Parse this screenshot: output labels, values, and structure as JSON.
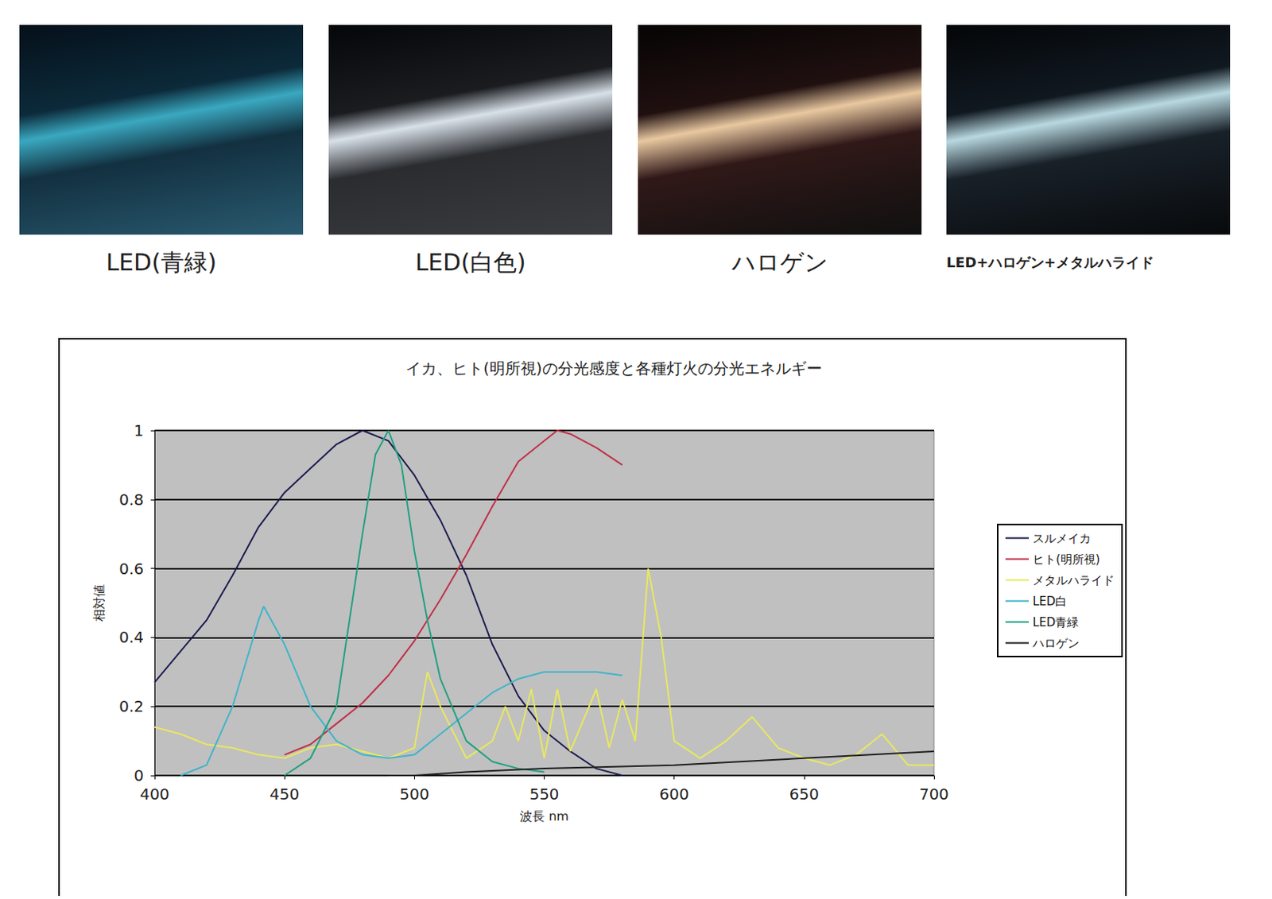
{
  "photos": [
    {
      "caption": "LED(青緑)"
    },
    {
      "caption": "LED(白色)"
    },
    {
      "caption": "ハロゲン"
    },
    {
      "caption": "LED+ハロゲン+メタルハライド"
    }
  ],
  "chart_data": {
    "type": "line",
    "title": "イカ、ヒト(明所視)の分光感度と各種灯火の分光エネルギー",
    "x_label": "波長 nm",
    "y_label": "相対値",
    "xlim": [
      400,
      700
    ],
    "xticks": [
      400,
      450,
      500,
      550,
      600,
      650,
      700
    ],
    "ylim": [
      0,
      1
    ],
    "yticks": [
      0,
      0.2,
      0.4,
      0.6,
      0.8,
      1
    ],
    "grid": true,
    "legend": "right",
    "series": [
      {
        "name": "スルメイカ",
        "color": "#1c1c50",
        "x": [
          400,
          410,
          420,
          430,
          440,
          450,
          460,
          470,
          480,
          490,
          500,
          510,
          520,
          530,
          540,
          550,
          560,
          570,
          580
        ],
        "values": [
          0.27,
          0.36,
          0.45,
          0.58,
          0.72,
          0.82,
          0.89,
          0.96,
          1.0,
          0.97,
          0.87,
          0.74,
          0.58,
          0.38,
          0.23,
          0.13,
          0.07,
          0.02,
          0
        ]
      },
      {
        "name": "ヒト(明所視)",
        "color": "#c03048",
        "x": [
          450,
          460,
          470,
          480,
          490,
          500,
          510,
          520,
          530,
          540,
          550,
          555,
          560,
          570,
          580
        ],
        "values": [
          0.06,
          0.09,
          0.15,
          0.21,
          0.29,
          0.39,
          0.51,
          0.64,
          0.78,
          0.91,
          0.97,
          1.0,
          0.99,
          0.95,
          0.9
        ]
      },
      {
        "name": "メタルハライド",
        "color": "#e8e860",
        "x": [
          400,
          410,
          420,
          430,
          440,
          450,
          460,
          470,
          480,
          490,
          500,
          505,
          510,
          520,
          530,
          535,
          540,
          545,
          550,
          555,
          560,
          570,
          575,
          580,
          585,
          590,
          595,
          600,
          610,
          620,
          630,
          640,
          650,
          660,
          670,
          680,
          690,
          700
        ],
        "values": [
          0.14,
          0.12,
          0.09,
          0.08,
          0.06,
          0.05,
          0.08,
          0.09,
          0.07,
          0.05,
          0.08,
          0.3,
          0.2,
          0.05,
          0.1,
          0.2,
          0.1,
          0.25,
          0.05,
          0.25,
          0.07,
          0.25,
          0.08,
          0.22,
          0.1,
          0.6,
          0.4,
          0.1,
          0.05,
          0.1,
          0.17,
          0.08,
          0.05,
          0.03,
          0.06,
          0.12,
          0.03,
          0.03
        ]
      },
      {
        "name": "LED白",
        "color": "#40b4c8",
        "x": [
          410,
          420,
          430,
          440,
          442,
          450,
          460,
          470,
          480,
          490,
          500,
          510,
          520,
          530,
          540,
          550,
          560,
          570,
          580
        ],
        "values": [
          0,
          0.03,
          0.2,
          0.45,
          0.49,
          0.38,
          0.2,
          0.1,
          0.06,
          0.05,
          0.06,
          0.12,
          0.18,
          0.24,
          0.28,
          0.3,
          0.3,
          0.3,
          0.29
        ]
      },
      {
        "name": "LED青緑",
        "color": "#20a080",
        "x": [
          450,
          460,
          470,
          480,
          485,
          490,
          495,
          500,
          505,
          510,
          520,
          530,
          540,
          550
        ],
        "values": [
          0,
          0.05,
          0.2,
          0.7,
          0.93,
          1.0,
          0.9,
          0.65,
          0.45,
          0.28,
          0.1,
          0.04,
          0.02,
          0.01
        ]
      },
      {
        "name": "ハロゲン",
        "color": "#202020",
        "x": [
          490,
          500,
          510,
          520,
          550,
          600,
          650,
          700
        ],
        "values": [
          0,
          0,
          0.005,
          0.01,
          0.02,
          0.03,
          0.05,
          0.07
        ]
      }
    ]
  }
}
